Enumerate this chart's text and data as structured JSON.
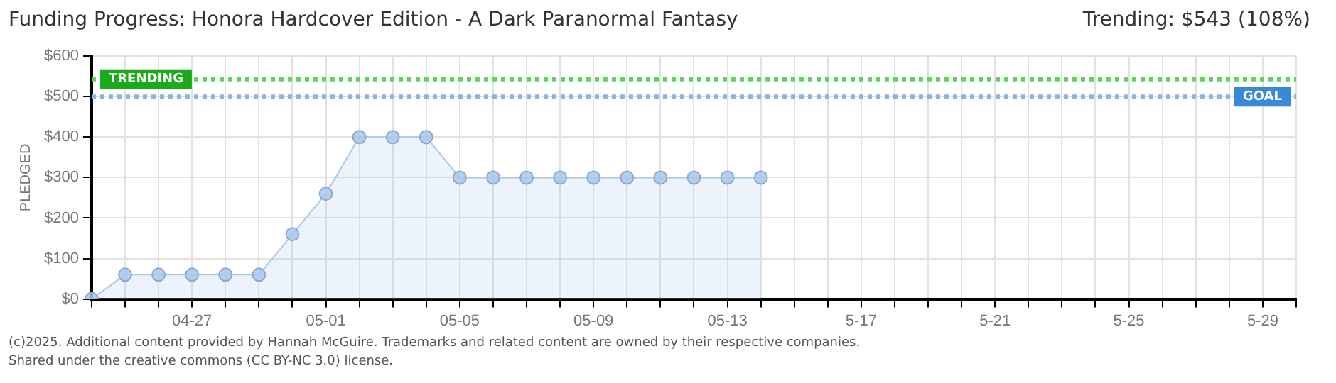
{
  "chart_data": {
    "type": "area",
    "title": "Funding Progress: Honora Hardcover Edition - A Dark Paranormal Fantasy",
    "ylabel": "PLEDGED",
    "categories": [
      null,
      null,
      null,
      "04-27",
      null,
      null,
      null,
      "05-01",
      null,
      null,
      null,
      "05-05",
      null,
      null,
      null,
      "05-09",
      null,
      null,
      null,
      "05-13",
      null,
      null,
      null,
      "5-17",
      null,
      null,
      null,
      "5-21",
      null,
      null,
      null,
      "5-25",
      null,
      null,
      null,
      "5-29",
      null
    ],
    "values": [
      0,
      60,
      60,
      60,
      60,
      60,
      160,
      260,
      400,
      400,
      400,
      300,
      300,
      300,
      300,
      300,
      300,
      300,
      300,
      300,
      300,
      null,
      null,
      null,
      null,
      null,
      null,
      null,
      null,
      null,
      null,
      null,
      null,
      null,
      null,
      null,
      null
    ],
    "color": "#a8c8ec",
    "marker": "circle",
    "grid": true,
    "legend": false,
    "ylim": [
      0,
      600
    ],
    "yticks": [
      {
        "value": 0,
        "label": "$0"
      },
      {
        "value": 100,
        "label": "$100"
      },
      {
        "value": 200,
        "label": "$200"
      },
      {
        "value": 300,
        "label": "$300"
      },
      {
        "value": 400,
        "label": "$400"
      },
      {
        "value": 500,
        "label": "$500"
      },
      {
        "value": 600,
        "label": "$600"
      }
    ],
    "ref_lines": [
      {
        "axis": "y",
        "value": 543,
        "label": "TRENDING",
        "color": "#5fd35a",
        "line_style": "dotted"
      },
      {
        "axis": "y",
        "value": 500,
        "label": "GOAL",
        "color": "#8cb4e0",
        "line_style": "dotted"
      }
    ],
    "annotations": [
      "Trending: $543 (108%)",
      "(c)2025. Additional content provided by Hannah McGuire. Trademarks and related content are owned by their respective companies.",
      "Shared under the creative commons (CC BY-NC 3.0) license."
    ]
  }
}
